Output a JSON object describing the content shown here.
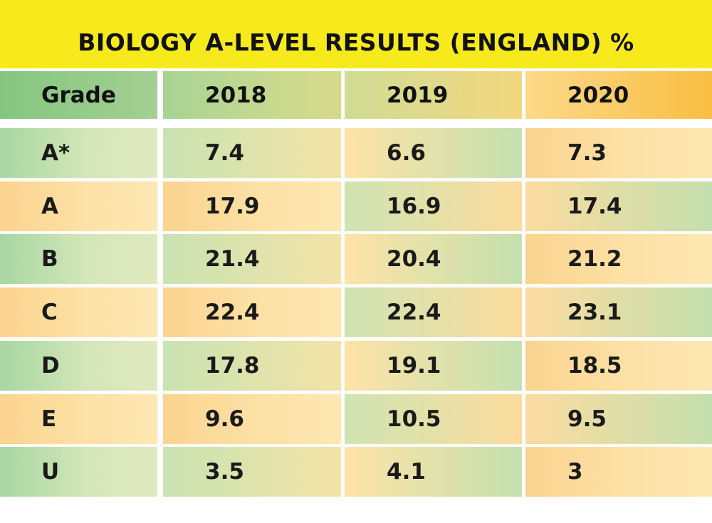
{
  "chart_data": {
    "type": "table",
    "title": "BIOLOGY A-LEVEL RESULTS (ENGLAND) %",
    "columns": [
      "Grade",
      "2018",
      "2019",
      "2020"
    ],
    "rows": [
      {
        "grade": "A*",
        "values": [
          "7.4",
          "6.6",
          "7.3"
        ]
      },
      {
        "grade": "A",
        "values": [
          "17.9",
          "16.9",
          "17.4"
        ]
      },
      {
        "grade": "B",
        "values": [
          "21.4",
          "20.4",
          "21.2"
        ]
      },
      {
        "grade": "C",
        "values": [
          "22.4",
          "22.4",
          "23.1"
        ]
      },
      {
        "grade": "D",
        "values": [
          "17.8",
          "19.1",
          "18.5"
        ]
      },
      {
        "grade": "E",
        "values": [
          "9.6",
          "10.5",
          "9.5"
        ]
      },
      {
        "grade": "U",
        "values": [
          "3.5",
          "4.1",
          "3"
        ]
      }
    ]
  },
  "colors": {
    "banner": "#f7ea1c",
    "green": "#a7d7a2",
    "orange": "#fad48f",
    "header_green": "#84c67f",
    "header_orange": "#f8be42"
  }
}
